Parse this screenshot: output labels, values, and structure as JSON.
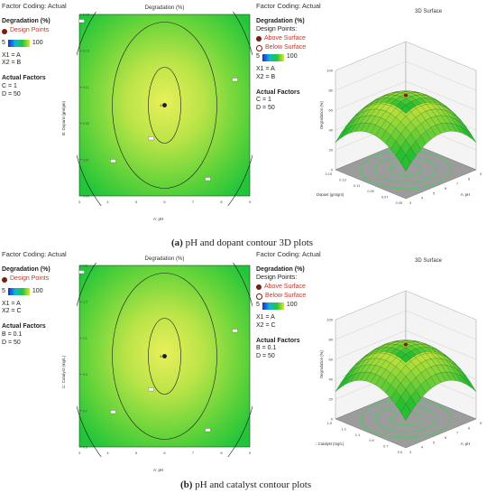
{
  "panel_a": {
    "caption_letter": "(a)",
    "caption_text": "pH and dopant contour 3D plots",
    "contour": {
      "factor_coding": "Factor Coding: Actual",
      "title": "Degradation (%)",
      "response_label": "Degradation (%)",
      "design_points_label": "Design Points",
      "gradient_min": "5",
      "gradient_max": "100",
      "x1": "X1 = A",
      "x2": "X2 = B",
      "actual_factors_label": "Actual Factors",
      "factor_1": "C = 1",
      "factor_2": "D = 50",
      "xlabel": "A: pH",
      "ylabel": "B: Dopant (gm/gm)"
    },
    "surface": {
      "factor_coding": "Factor Coding: Actual",
      "title": "3D Surface",
      "response_label": "Degradation (%)",
      "points_label": "Design Points:",
      "above_label": "Above Surface",
      "below_label": "Below Surface",
      "gradient_min": "5",
      "gradient_max": "100",
      "x1": "X1 = A",
      "x2": "X2 = B",
      "actual_factors_label": "Actual Factors",
      "factor_1": "C = 1",
      "factor_2": "D = 50",
      "zlabel": "Degradation (%)",
      "xlabel": "A: pH",
      "ylabel": "B: Dopant (gm/gm)"
    }
  },
  "panel_b": {
    "caption_letter": "(b)",
    "caption_text": "pH and catalyst contour plots",
    "contour": {
      "factor_coding": "Factor Coding: Actual",
      "title": "Degradation (%)",
      "response_label": "Degradation (%)",
      "design_points_label": "Design Points",
      "gradient_min": "5",
      "gradient_max": "100",
      "x1": "X1 = A",
      "x2": "X2 = C",
      "actual_factors_label": "Actual Factors",
      "factor_1": "B = 0.1",
      "factor_2": "D = 50",
      "xlabel": "A: pH",
      "ylabel": "C: Catalyst (mg/L)"
    },
    "surface": {
      "factor_coding": "Factor Coding: Actual",
      "title": "3D Surface",
      "response_label": "Degradation (%)",
      "points_label": "Design Points:",
      "above_label": "Above Surface",
      "below_label": "Below Surface",
      "gradient_min": "5",
      "gradient_max": "100",
      "x1": "X1 = A",
      "x2": "X2 = C",
      "actual_factors_label": "Actual Factors",
      "factor_1": "B = 0.1",
      "factor_2": "D = 50",
      "zlabel": "Degradation (%)",
      "xlabel": "A: pH",
      "ylabel": "C: Catalyst (mg/L)"
    }
  },
  "chart_data": [
    {
      "type": "heatmap",
      "title": "Degradation (%)",
      "xlabel": "A: pH",
      "ylabel": "B: Dopant (gm/gm)",
      "xlim": [
        3,
        9
      ],
      "ylim": [
        0.05,
        0.15
      ],
      "x_ticks": [
        "3",
        "4",
        "5",
        "6",
        "7",
        "8",
        "9"
      ],
      "y_ticks": [
        "0.05",
        "0.07",
        "0.09",
        "0.11",
        "0.13",
        "0.15"
      ],
      "design_points": [
        {
          "x": 6,
          "y": 0.1,
          "label": "6"
        }
      ],
      "colorbar": [
        5,
        100
      ]
    },
    {
      "type": "area",
      "title": "3D Surface",
      "xlabel": "A: pH",
      "ylabel": "B: Dopant (gm/gm)",
      "zlabel": "Degradation (%)",
      "xlim": [
        3,
        9
      ],
      "ylim": [
        0.05,
        0.15
      ],
      "zlim": [
        0,
        100
      ],
      "z_ticks": [
        "0",
        "20",
        "40",
        "60",
        "80",
        "100"
      ],
      "x_ticks": [
        "3",
        "4",
        "5",
        "6",
        "7",
        "8",
        "9"
      ],
      "y_ticks": [
        "0.05",
        "0.07",
        "0.09",
        "0.11",
        "0.13",
        "0.15"
      ],
      "peak": {
        "x": 6,
        "y": 0.1,
        "z": 75
      }
    },
    {
      "type": "heatmap",
      "title": "Degradation (%)",
      "xlabel": "A: pH",
      "ylabel": "C: Catalyst (mg/L)",
      "xlim": [
        3,
        9
      ],
      "ylim": [
        0.5,
        1.5
      ],
      "x_ticks": [
        "3",
        "4",
        "5",
        "6",
        "7",
        "8",
        "9"
      ],
      "y_ticks": [
        "0.5",
        "0.7",
        "0.9",
        "1.1",
        "1.3",
        "1.5"
      ],
      "design_points": [
        {
          "x": 6,
          "y": 1,
          "label": "6"
        }
      ],
      "colorbar": [
        5,
        100
      ]
    },
    {
      "type": "area",
      "title": "3D Surface",
      "xlabel": "A: pH",
      "ylabel": "C: Catalyst (mg/L)",
      "zlabel": "Degradation (%)",
      "xlim": [
        3,
        9
      ],
      "ylim": [
        0.5,
        1.5
      ],
      "zlim": [
        0,
        100
      ],
      "z_ticks": [
        "0",
        "20",
        "40",
        "60",
        "80",
        "100"
      ],
      "x_ticks": [
        "3",
        "4",
        "5",
        "6",
        "7",
        "8",
        "9"
      ],
      "y_ticks": [
        "0.5",
        "0.7",
        "0.9",
        "1.1",
        "1.3",
        "1.5"
      ],
      "peak": {
        "x": 6,
        "y": 1,
        "z": 75
      }
    }
  ]
}
